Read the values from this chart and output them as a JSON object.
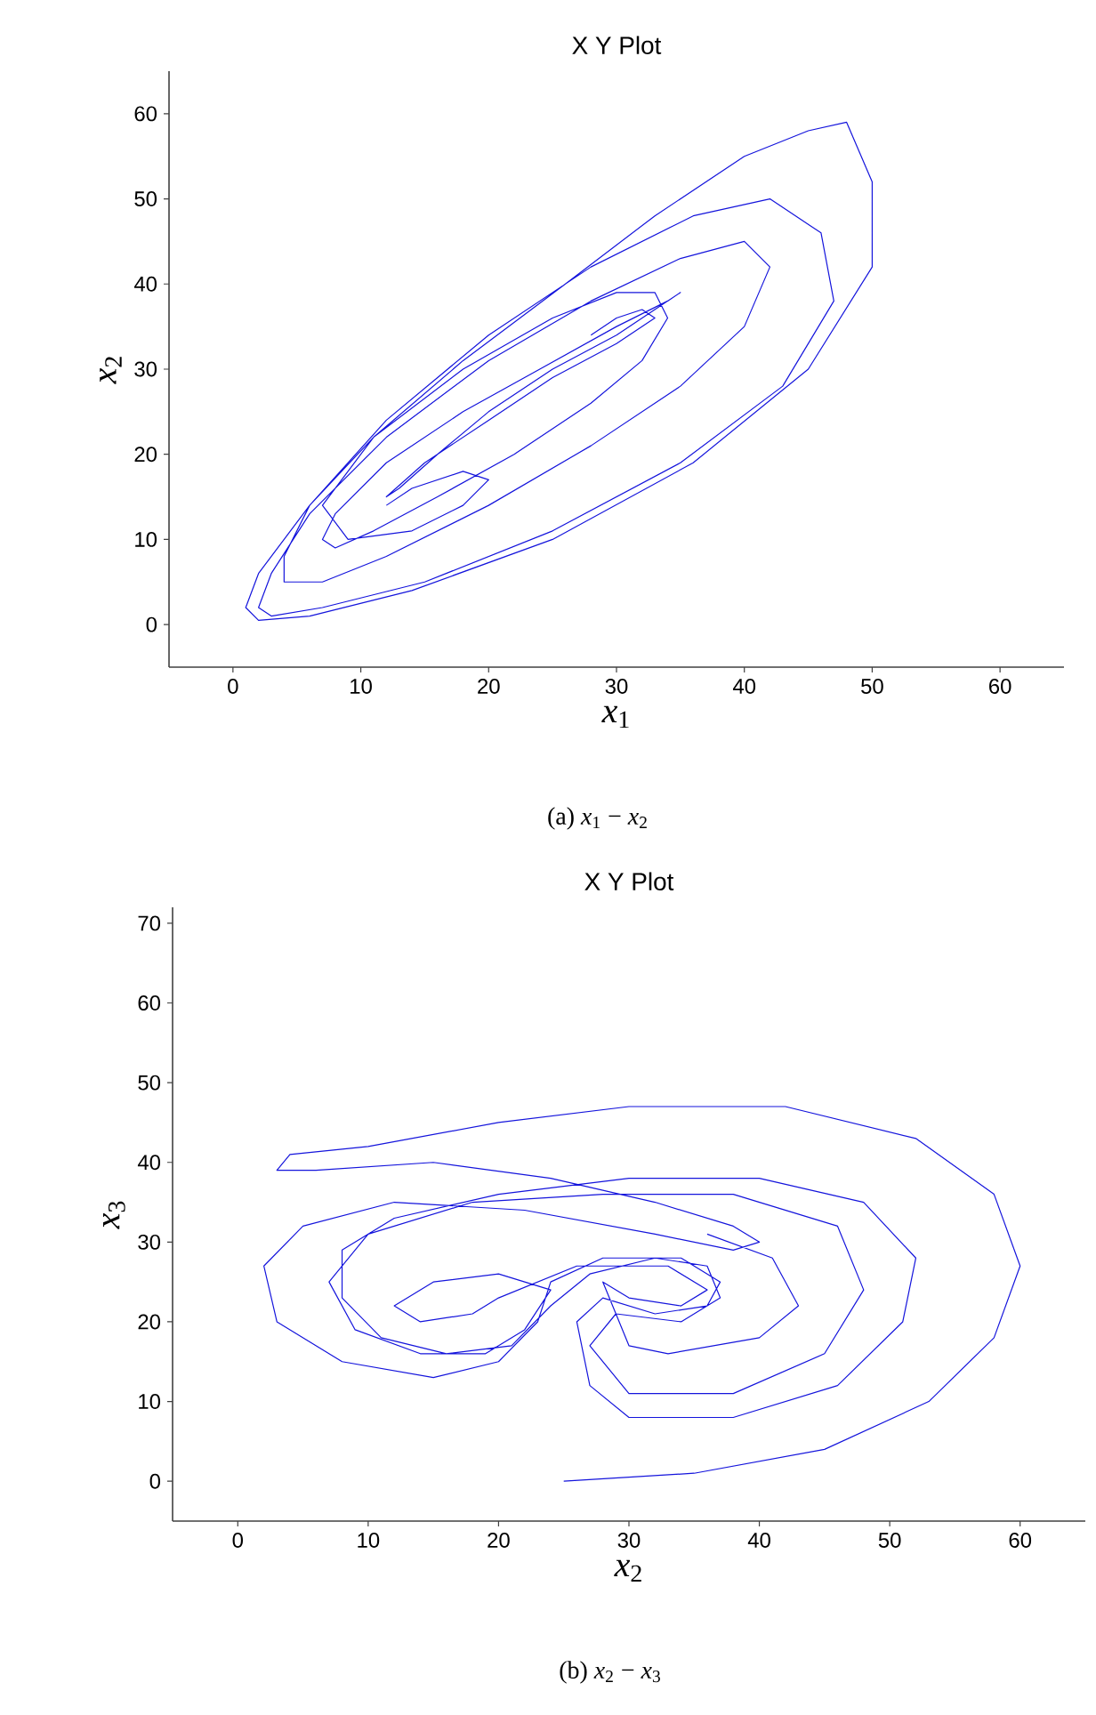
{
  "chart_data": [
    {
      "type": "line",
      "title": "X Y Plot",
      "xlabel": "*x*$_{1}$",
      "ylabel": "*x*$_{2}$",
      "annotations": [
        "(a) *x*$_{1}$ − *x*$_{2}$"
      ],
      "xlim": [
        -5,
        65
      ],
      "ylim": [
        -5,
        65
      ],
      "xticks": [
        0,
        10,
        20,
        30,
        40,
        50,
        60
      ],
      "yticks": [
        0,
        10,
        20,
        30,
        40,
        50,
        60
      ],
      "color": "#1414dc",
      "x": [
        28,
        30,
        32,
        33,
        30,
        25,
        20,
        15,
        12,
        13,
        16,
        20,
        25,
        30,
        33,
        35,
        34,
        30,
        24,
        18,
        12,
        8,
        7,
        8,
        11,
        16,
        22,
        28,
        32,
        34,
        33,
        30,
        25,
        18,
        11,
        6,
        4,
        4,
        7,
        12,
        20,
        28,
        35,
        40,
        42,
        40,
        35,
        28,
        20,
        12,
        6,
        3,
        2,
        3,
        7,
        15,
        25,
        35,
        43,
        47,
        46,
        42,
        36,
        28,
        20,
        12,
        6,
        2,
        1,
        2,
        6,
        14,
        25,
        36,
        45,
        50,
        50,
        48,
        45,
        40,
        33,
        26,
        18,
        11,
        7,
        9,
        14,
        18,
        20,
        18,
        14,
        12
      ],
      "values": [
        34,
        36,
        37,
        36,
        33,
        29,
        24,
        19,
        15,
        16,
        20,
        25,
        30,
        34,
        37,
        39,
        38,
        35,
        30,
        25,
        19,
        13,
        10,
        9,
        11,
        15,
        20,
        26,
        31,
        36,
        39,
        39,
        36,
        30,
        22,
        14,
        8,
        5,
        5,
        8,
        14,
        21,
        28,
        35,
        42,
        45,
        43,
        38,
        31,
        22,
        13,
        6,
        2,
        1,
        2,
        5,
        11,
        19,
        28,
        38,
        46,
        50,
        48,
        42,
        34,
        24,
        14,
        6,
        2,
        0.5,
        1,
        4,
        10,
        19,
        30,
        42,
        52,
        59,
        58,
        55,
        48,
        40,
        31,
        22,
        14,
        10,
        11,
        14,
        17,
        18,
        16,
        14
      ]
    },
    {
      "type": "line",
      "title": "X Y Plot",
      "xlabel": "*x*$_{2}$",
      "ylabel": "*x*$_{3}$",
      "annotations": [
        "(b) *x*$_{2}$ − *x*$_{3}$"
      ],
      "xlim": [
        -5,
        65
      ],
      "ylim": [
        -5,
        72
      ],
      "xticks": [
        0,
        10,
        20,
        30,
        40,
        50,
        60
      ],
      "yticks": [
        0,
        10,
        20,
        30,
        40,
        50,
        60,
        70
      ],
      "color": "#1414dc",
      "x": [
        25,
        35,
        45,
        53,
        58,
        60,
        58,
        52,
        42,
        30,
        20,
        10,
        4,
        3,
        6,
        15,
        24,
        32,
        38,
        40,
        38,
        32,
        22,
        12,
        5,
        2,
        3,
        8,
        15,
        20,
        23,
        24,
        28,
        34,
        37,
        36,
        32,
        28,
        26,
        27,
        30,
        38,
        46,
        51,
        52,
        48,
        40,
        30,
        20,
        12,
        8,
        8,
        11,
        16,
        21,
        24,
        27,
        32,
        36,
        37,
        34,
        29,
        27,
        30,
        38,
        45,
        48,
        46,
        38,
        28,
        18,
        10,
        7,
        9,
        14,
        19,
        22,
        24,
        20,
        15,
        12,
        14,
        18,
        20,
        26,
        33,
        36,
        34,
        30,
        28,
        30,
        33,
        40,
        43,
        41,
        36
      ],
      "values": [
        0,
        1,
        4,
        10,
        18,
        27,
        36,
        43,
        47,
        47,
        45,
        42,
        41,
        39,
        39,
        40,
        38,
        35,
        32,
        30,
        29,
        31,
        34,
        35,
        32,
        27,
        20,
        15,
        13,
        15,
        20,
        25,
        28,
        28,
        25,
        22,
        21,
        23,
        20,
        12,
        8,
        8,
        12,
        20,
        28,
        35,
        38,
        38,
        36,
        33,
        29,
        23,
        18,
        16,
        17,
        22,
        26,
        28,
        27,
        23,
        20,
        21,
        17,
        11,
        11,
        16,
        24,
        32,
        36,
        36,
        35,
        31,
        25,
        19,
        16,
        16,
        19,
        24,
        26,
        25,
        22,
        20,
        21,
        23,
        27,
        27,
        24,
        22,
        23,
        25,
        17,
        16,
        18,
        22,
        28,
        31
      ]
    }
  ]
}
